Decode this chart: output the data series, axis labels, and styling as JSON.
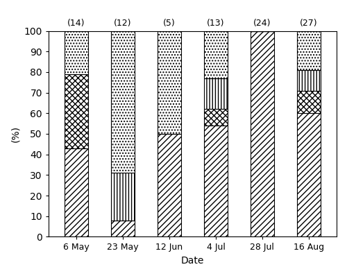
{
  "dates": [
    "6 May",
    "23 May",
    "12 Jun",
    "4 Jul",
    "28 Jul",
    "16 Aug"
  ],
  "counts": [
    "(14)",
    "(12)",
    "(5)",
    "(13)",
    "(24)",
    "(27)"
  ],
  "segments": {
    "CFB": [
      43,
      8,
      50,
      54,
      100,
      60
    ],
    "gamma": [
      36,
      0,
      0,
      8,
      0,
      11
    ],
    "beta": [
      0,
      23,
      0,
      15,
      0,
      10
    ],
    "alpha": [
      21,
      69,
      50,
      23,
      0,
      19
    ]
  },
  "ylim": [
    0,
    100
  ],
  "ylabel": "(%)",
  "xlabel": "Date",
  "bar_width": 0.5,
  "figsize": [
    5.0,
    3.98
  ],
  "dpi": 100,
  "count_fontsize": 9,
  "axis_fontsize": 10,
  "tick_fontsize": 9
}
